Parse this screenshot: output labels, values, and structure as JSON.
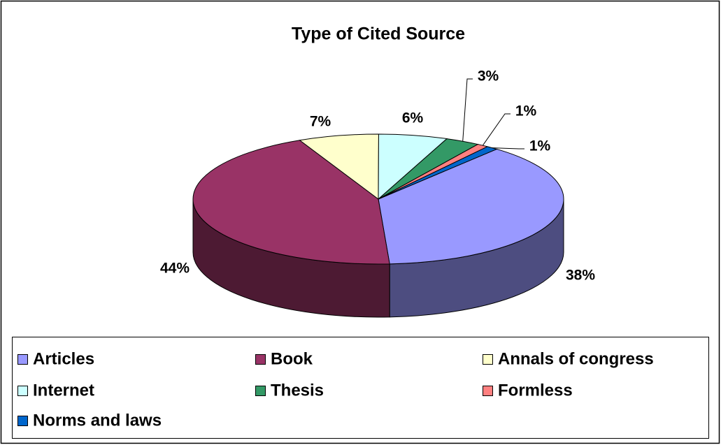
{
  "chart_data": {
    "type": "pie3d",
    "title": "Type of Cited Source",
    "categories": [
      "Articles",
      "Book",
      "Annals of congress",
      "Internet",
      "Thesis",
      "Formless",
      "Norms and laws"
    ],
    "values": [
      38,
      44,
      7,
      6,
      3,
      1,
      1
    ],
    "value_labels": [
      "38%",
      "44%",
      "7%",
      "6%",
      "3%",
      "1%",
      "1%"
    ],
    "colors": [
      "#9999ff",
      "#993366",
      "#ffffcc",
      "#ccffff",
      "#339966",
      "#ff8080",
      "#0066cc"
    ],
    "legend": "bottom"
  }
}
